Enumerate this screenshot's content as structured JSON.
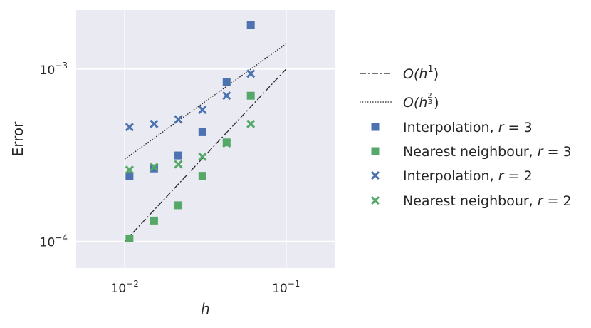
{
  "chart_data": {
    "type": "scatter",
    "xscale": "log",
    "yscale": "log",
    "xlim": [
      0.005,
      0.2
    ],
    "ylim": [
      7e-05,
      0.0022
    ],
    "xlabel": "h",
    "ylabel": "Error",
    "grid": true,
    "legend_position": "right",
    "x_ticks": [
      {
        "value": 0.01,
        "base": "10",
        "exp": "−2"
      },
      {
        "value": 0.1,
        "base": "10",
        "exp": "−1"
      }
    ],
    "y_ticks": [
      {
        "value": 0.0001,
        "base": "10",
        "exp": "−4"
      },
      {
        "value": 0.001,
        "base": "10",
        "exp": "−3"
      }
    ],
    "colors": {
      "background": "#eaeaf2",
      "grid": "#ffffff",
      "blue": "#4c72b0",
      "green": "#55a868",
      "reference": "#262626"
    },
    "reference_lines": [
      {
        "label": "O(h^1)",
        "label_main": "O(h",
        "label_sup": "1",
        "label_close": ")",
        "style": "dashdot",
        "x": [
          0.01,
          0.1
        ],
        "y": [
          0.0001,
          0.001
        ]
      },
      {
        "label": "O(h^(2/3))",
        "label_main": "O(h",
        "label_num": "2",
        "label_den": "3",
        "label_close": ")",
        "style": "dotted",
        "x": [
          0.01,
          0.1
        ],
        "y": [
          0.0003,
          0.0014
        ]
      }
    ],
    "series": [
      {
        "label_text": "Interpolation, ",
        "label_var": "r",
        "label_eq": " = 3",
        "marker": "square",
        "color": "blue",
        "x": [
          0.0107,
          0.0152,
          0.0215,
          0.0303,
          0.0428,
          0.0604
        ],
        "y": [
          0.00024,
          0.000265,
          0.000315,
          0.00043,
          0.00084,
          0.0018
        ]
      },
      {
        "label_text": "Nearest neighbour, ",
        "label_var": "r",
        "label_eq": " = 3",
        "marker": "square",
        "color": "green",
        "x": [
          0.0107,
          0.0152,
          0.0215,
          0.0303,
          0.0428,
          0.0604
        ],
        "y": [
          0.000104,
          0.000132,
          0.000162,
          0.00024,
          0.000375,
          0.0007
        ]
      },
      {
        "label_text": "Interpolation, ",
        "label_var": "r",
        "label_eq": " = 2",
        "marker": "x",
        "color": "blue",
        "x": [
          0.0107,
          0.0152,
          0.0215,
          0.0303,
          0.0428,
          0.0604
        ],
        "y": [
          0.00046,
          0.00048,
          0.00051,
          0.00058,
          0.0007,
          0.00094
        ]
      },
      {
        "label_text": "Nearest neighbour, ",
        "label_var": "r",
        "label_eq": " = 2",
        "marker": "x",
        "color": "green",
        "x": [
          0.0107,
          0.0152,
          0.0215,
          0.0303,
          0.0428,
          0.0604
        ],
        "y": [
          0.00026,
          0.00027,
          0.00028,
          0.00031,
          0.00037,
          0.00048
        ]
      }
    ]
  }
}
